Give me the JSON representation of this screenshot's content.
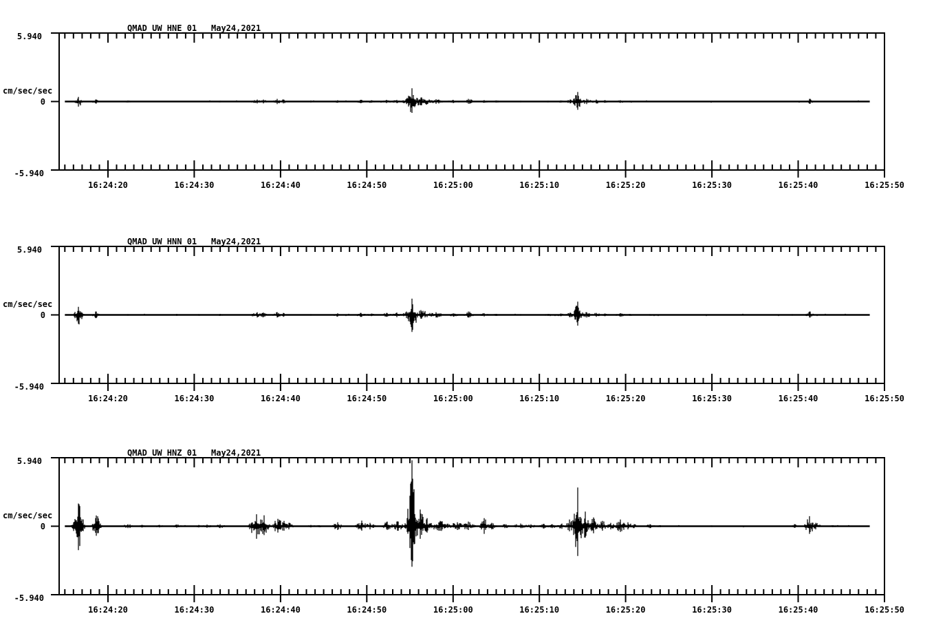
{
  "page": {
    "background": "#ffffff",
    "ink": "#000000"
  },
  "chart_data": [
    {
      "type": "line",
      "chart_kind": "seismogram",
      "station": "QMAD_UW_HNE_01",
      "date_label": "May24,2021",
      "title": "QMAD_UW_HNE_01   May24,2021",
      "ylabel": "cm/sec/sec",
      "ylim": [
        -5.94,
        5.94
      ],
      "ytick_labels": [
        "5.940",
        "0",
        "-5.940"
      ],
      "ytick_values": [
        5.94,
        0,
        -5.94
      ],
      "xtick_labels": [
        "16:24:20",
        "16:24:30",
        "16:24:40",
        "16:24:50",
        "16:25:00",
        "16:25:10",
        "16:25:20",
        "16:25:30",
        "16:25:40",
        "16:25:50"
      ],
      "xtick_seconds": [
        20,
        30,
        40,
        50,
        60,
        70,
        80,
        90,
        100,
        110
      ],
      "x_axis_seconds": [
        14.3,
        110.1
      ],
      "trace_seconds": [
        15.0,
        108.3
      ],
      "minor_tick_step_seconds": 1,
      "grid": false,
      "noise_floor": 0.04,
      "events_format": "[time_seconds_after_16:24:00, peak_up, peak_down, half_width_seconds] in cm/sec/sec",
      "events": [
        [
          16.6,
          0.42,
          0.48,
          0.25
        ],
        [
          18.6,
          0.18,
          0.18,
          0.2
        ],
        [
          22.3,
          0.09,
          0.09,
          0.5
        ],
        [
          28.0,
          0.06,
          0.06,
          0.4
        ],
        [
          30.5,
          0.06,
          0.06,
          0.4
        ],
        [
          33.0,
          0.07,
          0.07,
          0.4
        ],
        [
          37.3,
          0.18,
          0.18,
          0.5
        ],
        [
          38.0,
          0.18,
          0.18,
          0.3
        ],
        [
          39.6,
          0.24,
          0.24,
          0.3
        ],
        [
          40.3,
          0.18,
          0.18,
          0.25
        ],
        [
          43.5,
          0.09,
          0.09,
          0.3
        ],
        [
          46.6,
          0.12,
          0.12,
          0.4
        ],
        [
          49.3,
          0.15,
          0.15,
          0.4
        ],
        [
          50.5,
          0.12,
          0.12,
          0.4
        ],
        [
          52.3,
          0.15,
          0.15,
          0.4
        ],
        [
          53.5,
          0.15,
          0.15,
          0.4
        ],
        [
          54.6,
          0.24,
          0.24,
          0.3
        ],
        [
          55.25,
          1.19,
          1.07,
          0.35
        ],
        [
          56.3,
          0.36,
          0.36,
          0.8
        ],
        [
          58.0,
          0.21,
          0.21,
          0.6
        ],
        [
          60.0,
          0.15,
          0.15,
          0.5
        ],
        [
          61.8,
          0.24,
          0.21,
          0.4
        ],
        [
          63.6,
          0.12,
          0.12,
          0.4
        ],
        [
          65.0,
          0.09,
          0.09,
          0.4
        ],
        [
          67.8,
          0.07,
          0.07,
          0.5
        ],
        [
          71.0,
          0.07,
          0.07,
          0.4
        ],
        [
          72.5,
          0.09,
          0.09,
          0.4
        ],
        [
          73.6,
          0.18,
          0.18,
          0.3
        ],
        [
          74.45,
          0.84,
          0.78,
          0.3
        ],
        [
          75.5,
          0.24,
          0.24,
          0.4
        ],
        [
          76.6,
          0.18,
          0.18,
          0.4
        ],
        [
          77.6,
          0.12,
          0.12,
          0.4
        ],
        [
          79.4,
          0.12,
          0.12,
          0.4
        ],
        [
          80.5,
          0.07,
          0.07,
          0.4
        ],
        [
          82.8,
          0.06,
          0.06,
          0.4
        ],
        [
          99.3,
          0.06,
          0.06,
          0.3
        ],
        [
          101.35,
          0.24,
          0.21,
          0.3
        ],
        [
          104.0,
          0.05,
          0.05,
          0.4
        ]
      ]
    },
    {
      "type": "line",
      "chart_kind": "seismogram",
      "station": "QMAD_UW_HNN_01",
      "date_label": "May24,2021",
      "title": "QMAD_UW_HNN_01   May24,2021",
      "ylabel": "cm/sec/sec",
      "ylim": [
        -5.94,
        5.94
      ],
      "ytick_labels": [
        "5.940",
        "0",
        "-5.940"
      ],
      "ytick_values": [
        5.94,
        0,
        -5.94
      ],
      "xtick_labels": [
        "16:24:20",
        "16:24:30",
        "16:24:40",
        "16:24:50",
        "16:25:00",
        "16:25:10",
        "16:25:20",
        "16:25:30",
        "16:25:40",
        "16:25:50"
      ],
      "xtick_seconds": [
        20,
        30,
        40,
        50,
        60,
        70,
        80,
        90,
        100,
        110
      ],
      "x_axis_seconds": [
        14.3,
        110.1
      ],
      "trace_seconds": [
        15.0,
        108.3
      ],
      "minor_tick_step_seconds": 1,
      "grid": false,
      "noise_floor": 0.04,
      "events_format": "[time_seconds_after_16:24:00, peak_up, peak_down, half_width_seconds] in cm/sec/sec",
      "events": [
        [
          16.6,
          0.72,
          0.84,
          0.3
        ],
        [
          18.6,
          0.3,
          0.3,
          0.25
        ],
        [
          22.3,
          0.07,
          0.07,
          0.4
        ],
        [
          28.0,
          0.09,
          0.09,
          0.3
        ],
        [
          30.5,
          0.07,
          0.07,
          0.3
        ],
        [
          33.0,
          0.09,
          0.09,
          0.3
        ],
        [
          37.3,
          0.24,
          0.24,
          0.5
        ],
        [
          38.0,
          0.21,
          0.21,
          0.3
        ],
        [
          39.6,
          0.24,
          0.24,
          0.3
        ],
        [
          40.3,
          0.18,
          0.18,
          0.25
        ],
        [
          43.5,
          0.07,
          0.07,
          0.3
        ],
        [
          46.6,
          0.15,
          0.15,
          0.4
        ],
        [
          49.3,
          0.18,
          0.18,
          0.4
        ],
        [
          50.5,
          0.12,
          0.12,
          0.4
        ],
        [
          52.3,
          0.18,
          0.18,
          0.4
        ],
        [
          53.5,
          0.21,
          0.21,
          0.4
        ],
        [
          54.6,
          0.3,
          0.3,
          0.3
        ],
        [
          55.25,
          1.37,
          1.61,
          0.35
        ],
        [
          56.3,
          0.42,
          0.36,
          0.8
        ],
        [
          58.0,
          0.24,
          0.24,
          0.6
        ],
        [
          60.0,
          0.15,
          0.15,
          0.5
        ],
        [
          61.8,
          0.3,
          0.24,
          0.4
        ],
        [
          63.6,
          0.15,
          0.15,
          0.4
        ],
        [
          65.0,
          0.09,
          0.09,
          0.4
        ],
        [
          67.8,
          0.07,
          0.07,
          0.5
        ],
        [
          71.0,
          0.09,
          0.09,
          0.4
        ],
        [
          72.5,
          0.12,
          0.12,
          0.4
        ],
        [
          73.6,
          0.21,
          0.21,
          0.3
        ],
        [
          74.45,
          1.19,
          1.01,
          0.3
        ],
        [
          75.5,
          0.24,
          0.24,
          0.4
        ],
        [
          76.6,
          0.18,
          0.18,
          0.4
        ],
        [
          77.6,
          0.12,
          0.12,
          0.4
        ],
        [
          79.4,
          0.15,
          0.15,
          0.4
        ],
        [
          80.5,
          0.09,
          0.09,
          0.4
        ],
        [
          82.8,
          0.07,
          0.07,
          0.4
        ],
        [
          90.0,
          0.06,
          0.06,
          0.4
        ],
        [
          99.3,
          0.07,
          0.07,
          0.3
        ],
        [
          101.35,
          0.3,
          0.24,
          0.3
        ],
        [
          104.0,
          0.05,
          0.05,
          0.4
        ]
      ]
    },
    {
      "type": "line",
      "chart_kind": "seismogram",
      "station": "QMAD_UW_HNZ_01",
      "date_label": "May24,2021",
      "title": "QMAD_UW_HNZ_01   May24,2021",
      "ylabel": "cm/sec/sec",
      "ylim": [
        -5.94,
        5.94
      ],
      "ytick_labels": [
        "5.940",
        "0",
        "-5.940"
      ],
      "ytick_values": [
        5.94,
        0,
        -5.94
      ],
      "xtick_labels": [
        "16:24:20",
        "16:24:30",
        "16:24:40",
        "16:24:50",
        "16:25:00",
        "16:25:10",
        "16:25:20",
        "16:25:30",
        "16:25:40",
        "16:25:50"
      ],
      "xtick_seconds": [
        20,
        30,
        40,
        50,
        60,
        70,
        80,
        90,
        100,
        110
      ],
      "x_axis_seconds": [
        14.3,
        110.1
      ],
      "trace_seconds": [
        15.0,
        108.3
      ],
      "minor_tick_step_seconds": 1,
      "grid": false,
      "noise_floor": 0.06,
      "events_format": "[time_seconds_after_16:24:00, peak_up, peak_down, half_width_seconds] in cm/sec/sec",
      "events": [
        [
          16.6,
          2.03,
          2.15,
          0.35
        ],
        [
          18.65,
          0.96,
          0.9,
          0.3
        ],
        [
          22.3,
          0.18,
          0.18,
          0.5
        ],
        [
          24.0,
          0.12,
          0.12,
          0.4
        ],
        [
          26.0,
          0.12,
          0.12,
          0.4
        ],
        [
          28.0,
          0.15,
          0.15,
          0.4
        ],
        [
          30.5,
          0.12,
          0.12,
          0.4
        ],
        [
          31.5,
          0.15,
          0.15,
          0.4
        ],
        [
          33.0,
          0.18,
          0.18,
          0.4
        ],
        [
          37.2,
          1.07,
          1.19,
          0.45
        ],
        [
          38.1,
          0.96,
          0.84,
          0.35
        ],
        [
          39.7,
          0.66,
          0.6,
          0.4
        ],
        [
          40.4,
          0.48,
          0.42,
          0.3
        ],
        [
          41.0,
          0.3,
          0.3,
          0.3
        ],
        [
          43.5,
          0.12,
          0.12,
          0.4
        ],
        [
          44.5,
          0.09,
          0.09,
          0.4
        ],
        [
          46.6,
          0.36,
          0.36,
          0.35
        ],
        [
          49.4,
          0.48,
          0.42,
          0.4
        ],
        [
          50.4,
          0.3,
          0.3,
          0.4
        ],
        [
          52.4,
          0.42,
          0.36,
          0.4
        ],
        [
          53.6,
          0.42,
          0.42,
          0.4
        ],
        [
          54.7,
          0.72,
          0.54,
          0.3
        ],
        [
          55.25,
          5.9,
          3.82,
          0.3
        ],
        [
          56.2,
          1.49,
          1.19,
          0.5
        ],
        [
          57.0,
          0.72,
          0.6,
          0.4
        ],
        [
          58.5,
          0.48,
          0.42,
          0.8
        ],
        [
          60.5,
          0.36,
          0.36,
          0.6
        ],
        [
          61.8,
          0.42,
          0.36,
          0.5
        ],
        [
          63.6,
          0.72,
          0.72,
          0.3
        ],
        [
          64.5,
          0.3,
          0.3,
          0.4
        ],
        [
          66.0,
          0.18,
          0.18,
          0.4
        ],
        [
          67.8,
          0.24,
          0.18,
          0.6
        ],
        [
          69.0,
          0.18,
          0.18,
          0.5
        ],
        [
          70.5,
          0.21,
          0.21,
          0.4
        ],
        [
          71.5,
          0.18,
          0.18,
          0.4
        ],
        [
          72.6,
          0.24,
          0.24,
          0.4
        ],
        [
          73.5,
          0.6,
          0.48,
          0.3
        ],
        [
          74.45,
          3.46,
          2.81,
          0.3
        ],
        [
          75.3,
          1.31,
          1.07,
          0.3
        ],
        [
          76.3,
          0.78,
          0.66,
          0.3
        ],
        [
          77.3,
          0.48,
          0.42,
          0.3
        ],
        [
          78.3,
          0.3,
          0.3,
          0.3
        ],
        [
          79.4,
          0.6,
          0.54,
          0.4
        ],
        [
          80.3,
          0.36,
          0.3,
          0.3
        ],
        [
          81.0,
          0.18,
          0.18,
          0.3
        ],
        [
          82.8,
          0.18,
          0.18,
          0.4
        ],
        [
          84.0,
          0.09,
          0.09,
          0.4
        ],
        [
          90.0,
          0.07,
          0.07,
          0.4
        ],
        [
          96.0,
          0.06,
          0.06,
          0.4
        ],
        [
          99.6,
          0.18,
          0.15,
          0.3
        ],
        [
          101.3,
          0.9,
          0.72,
          0.35
        ],
        [
          102.0,
          0.3,
          0.3,
          0.4
        ],
        [
          104.0,
          0.09,
          0.09,
          0.4
        ]
      ]
    }
  ]
}
